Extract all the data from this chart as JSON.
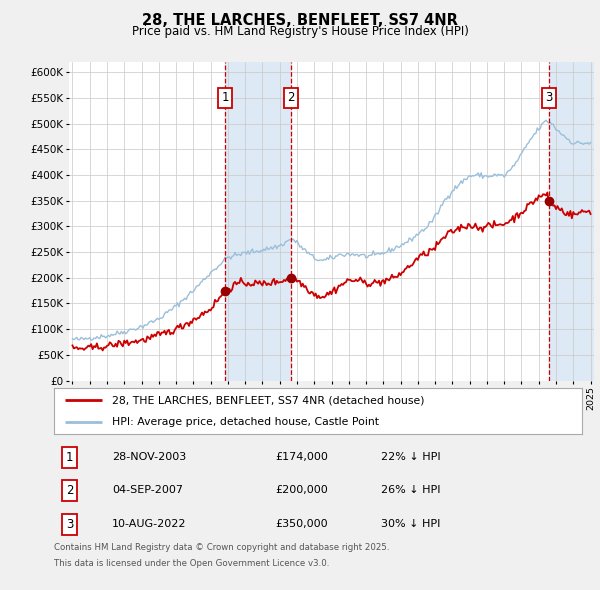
{
  "title": "28, THE LARCHES, BENFLEET, SS7 4NR",
  "subtitle": "Price paid vs. HM Land Registry's House Price Index (HPI)",
  "legend_line1": "28, THE LARCHES, BENFLEET, SS7 4NR (detached house)",
  "legend_line2": "HPI: Average price, detached house, Castle Point",
  "footnote1": "Contains HM Land Registry data © Crown copyright and database right 2025.",
  "footnote2": "This data is licensed under the Open Government Licence v3.0.",
  "transactions": [
    {
      "num": "1",
      "date": "28-NOV-2003",
      "price": "£174,000",
      "pct": "22% ↓ HPI"
    },
    {
      "num": "2",
      "date": "04-SEP-2007",
      "price": "£200,000",
      "pct": "26% ↓ HPI"
    },
    {
      "num": "3",
      "date": "10-AUG-2022",
      "price": "£350,000",
      "pct": "30% ↓ HPI"
    }
  ],
  "t1_price": 174000,
  "t2_price": 200000,
  "t3_price": 350000,
  "ylim": [
    0,
    620000
  ],
  "yticks": [
    0,
    50000,
    100000,
    150000,
    200000,
    250000,
    300000,
    350000,
    400000,
    450000,
    500000,
    550000,
    600000
  ],
  "hpi_color": "#9bbfda",
  "price_color": "#cc0000",
  "shade_color": "#ddeaf5",
  "grid_color": "#c8c8c8",
  "bg_color": "#f0f0f0",
  "plot_bg": "#ffffff",
  "vline_color": "#cc0000",
  "marker_color": "#990000"
}
